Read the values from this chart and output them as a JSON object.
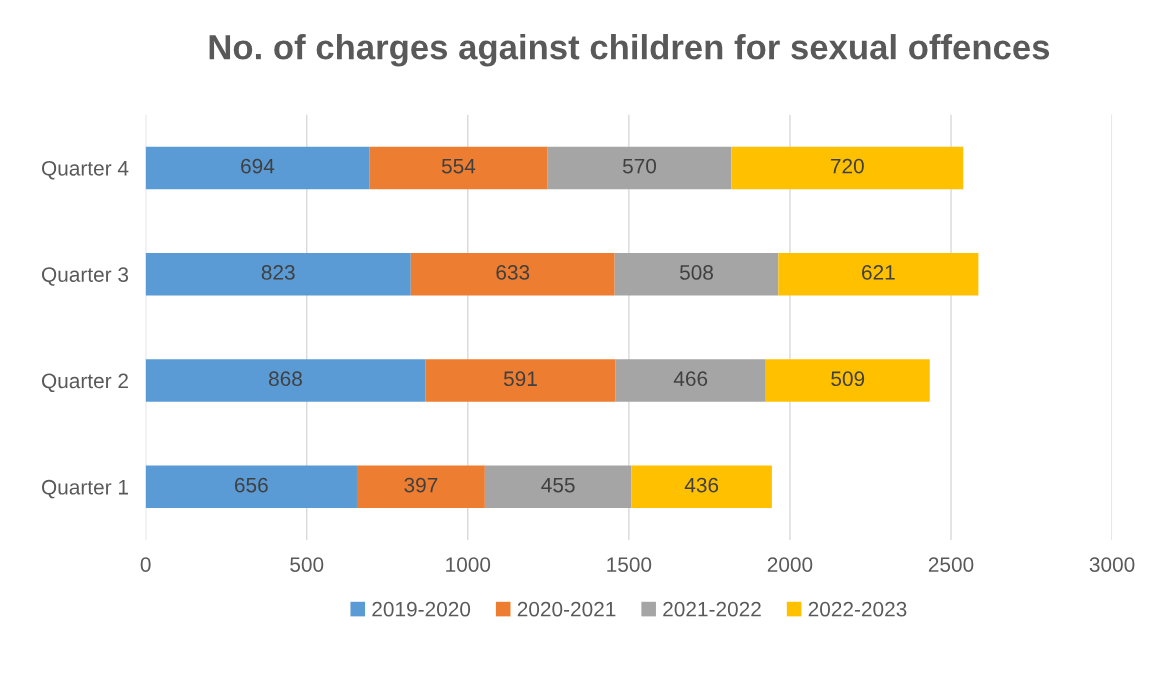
{
  "chart_data": {
    "type": "bar",
    "orientation": "horizontal",
    "stacked": true,
    "title": "No. of charges against children for sexual offences",
    "categories": [
      "Quarter 4",
      "Quarter 3",
      "Quarter 2",
      "Quarter 1"
    ],
    "series": [
      {
        "name": "2019-2020",
        "color": "#5b9bd5",
        "values": [
          694,
          823,
          868,
          656
        ]
      },
      {
        "name": "2020-2021",
        "color": "#ed7d31",
        "values": [
          554,
          633,
          591,
          397
        ]
      },
      {
        "name": "2021-2022",
        "color": "#a5a5a5",
        "values": [
          570,
          508,
          466,
          455
        ]
      },
      {
        "name": "2022-2023",
        "color": "#ffc000",
        "values": [
          720,
          621,
          509,
          436
        ]
      }
    ],
    "xlim": [
      0,
      3000
    ],
    "xticks": [
      0,
      500,
      1000,
      1500,
      2000,
      2500,
      3000
    ],
    "grid": "x",
    "legend": "bottom",
    "data_labels": true
  }
}
